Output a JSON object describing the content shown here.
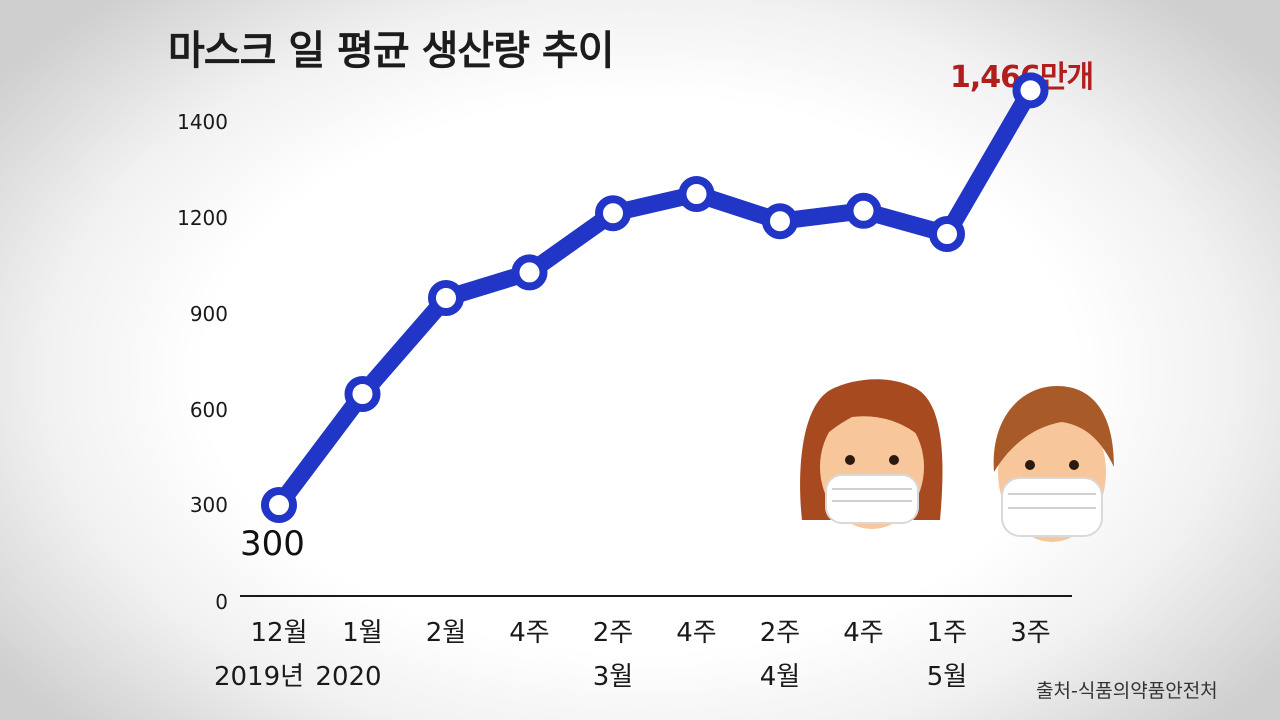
{
  "title": "마스크 일 평균 생산량 추이",
  "peak_label": "1,466만개",
  "start_label": "300",
  "source": "출처-식품의약품안전처",
  "colors": {
    "line": "#2135c7",
    "peak": "#b01e1e",
    "text": "#1a1a1a"
  },
  "chart_data": {
    "type": "line",
    "title": "마스크 일 평균 생산량 추이",
    "categories": [
      "12월",
      "1월",
      "2월",
      "4주",
      "2주",
      "4주",
      "2주",
      "4주",
      "1주",
      "3주"
    ],
    "sub_labels": [
      "2019년",
      "2020",
      "",
      "",
      "3월",
      "",
      "4월",
      "",
      "5월",
      ""
    ],
    "y_ticks": [
      "0",
      "300",
      "600",
      "900",
      "1200",
      "1400"
    ],
    "series": [
      {
        "values": [
          300,
          650,
          950,
          1030,
          1210,
          1250,
          1190,
          1215,
          1150,
          1466
        ]
      }
    ],
    "annotations": {
      "first": "300",
      "last": "1,466만개"
    },
    "grid": false,
    "legend": "none"
  }
}
